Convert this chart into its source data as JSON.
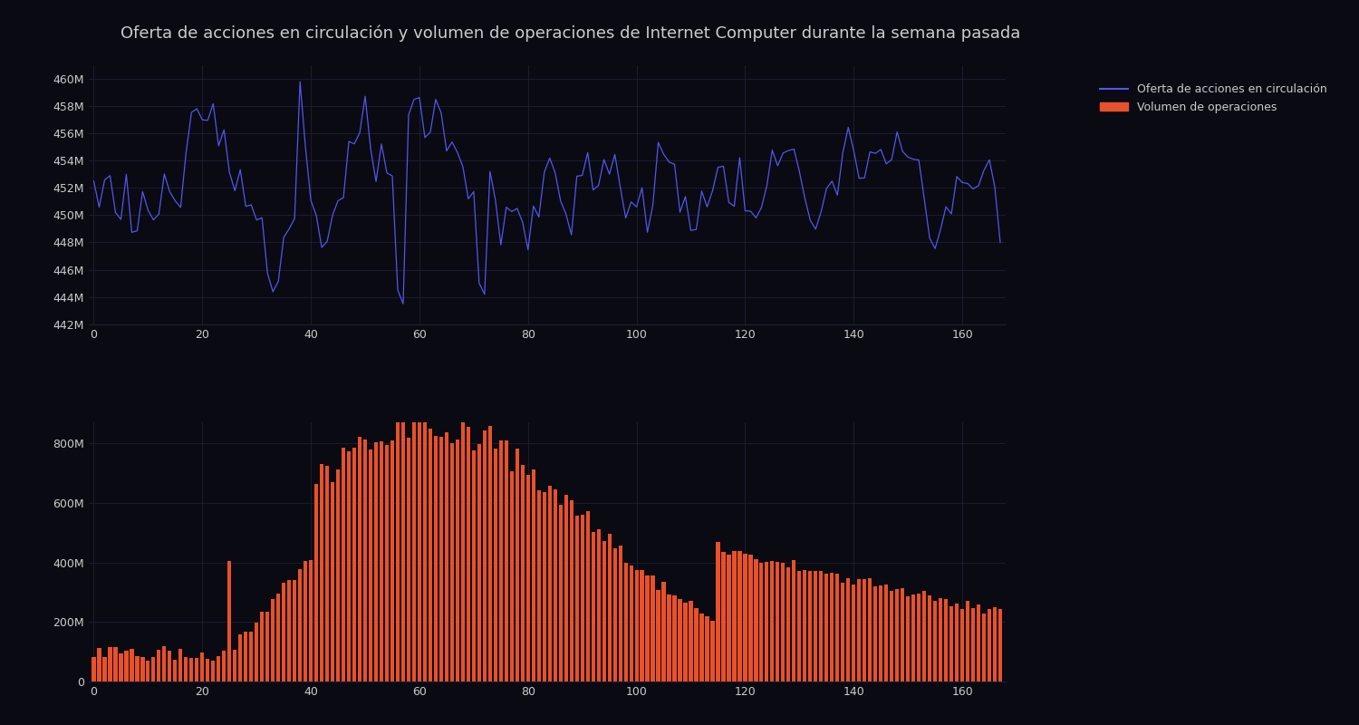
{
  "title": "Oferta de acciones en circulación y volumen de operaciones de Internet Computer durante la semana pasada",
  "legend_line": "Oferta de acciones en circulación",
  "legend_bar": "Volumen de operaciones",
  "background_color": "#0a0a12",
  "grid_color": "#1e2035",
  "line_color": "#5555ee",
  "bar_color": "#e8512a",
  "text_color": "#cccccc",
  "title_fontsize": 13,
  "tick_fontsize": 9,
  "legend_fontsize": 9,
  "n_points": 168,
  "supply_base": 452000000,
  "ylim_supply": [
    442000000,
    461000000
  ],
  "ylim_volume": [
    0,
    870000000
  ],
  "yticks_supply": [
    442000000,
    444000000,
    446000000,
    448000000,
    450000000,
    452000000,
    454000000,
    456000000,
    458000000,
    460000000
  ],
  "ytick_labels_supply": [
    "442M",
    "444M",
    "446M",
    "448M",
    "450M",
    "452M",
    "454M",
    "456M",
    "458M",
    "460M"
  ],
  "yticks_volume": [
    0,
    200000000,
    400000000,
    600000000,
    800000000
  ],
  "ytick_labels_volume": [
    "0",
    "200M",
    "400M",
    "600M",
    "800M"
  ],
  "xticks": [
    0,
    20,
    40,
    60,
    80,
    100,
    120,
    140,
    160
  ],
  "bar_width": 0.7
}
